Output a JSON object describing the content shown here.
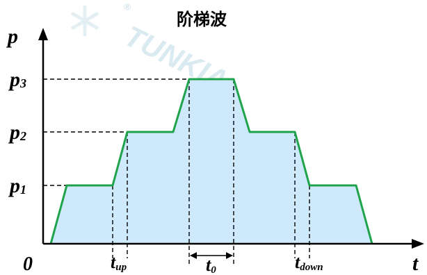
{
  "title": "阶梯波",
  "watermark": {
    "text": "TUNKIA",
    "registered_mark": "®",
    "color": "#cfe3ea"
  },
  "axes": {
    "y_label": "p",
    "x_label": "t",
    "origin_label": "0"
  },
  "levels": [
    {
      "base": "p",
      "sub": "1"
    },
    {
      "base": "p",
      "sub": "2"
    },
    {
      "base": "p",
      "sub": "3"
    }
  ],
  "time_labels": {
    "t_up": {
      "base": "t",
      "sub": "up"
    },
    "t_0": {
      "base": "t",
      "sub": "0"
    },
    "t_down": {
      "base": "t",
      "sub": "down"
    }
  },
  "colors": {
    "waveform": "#1ea34a",
    "fill": "#cde9fb",
    "axis": "#000000",
    "guide": "#000000"
  }
}
